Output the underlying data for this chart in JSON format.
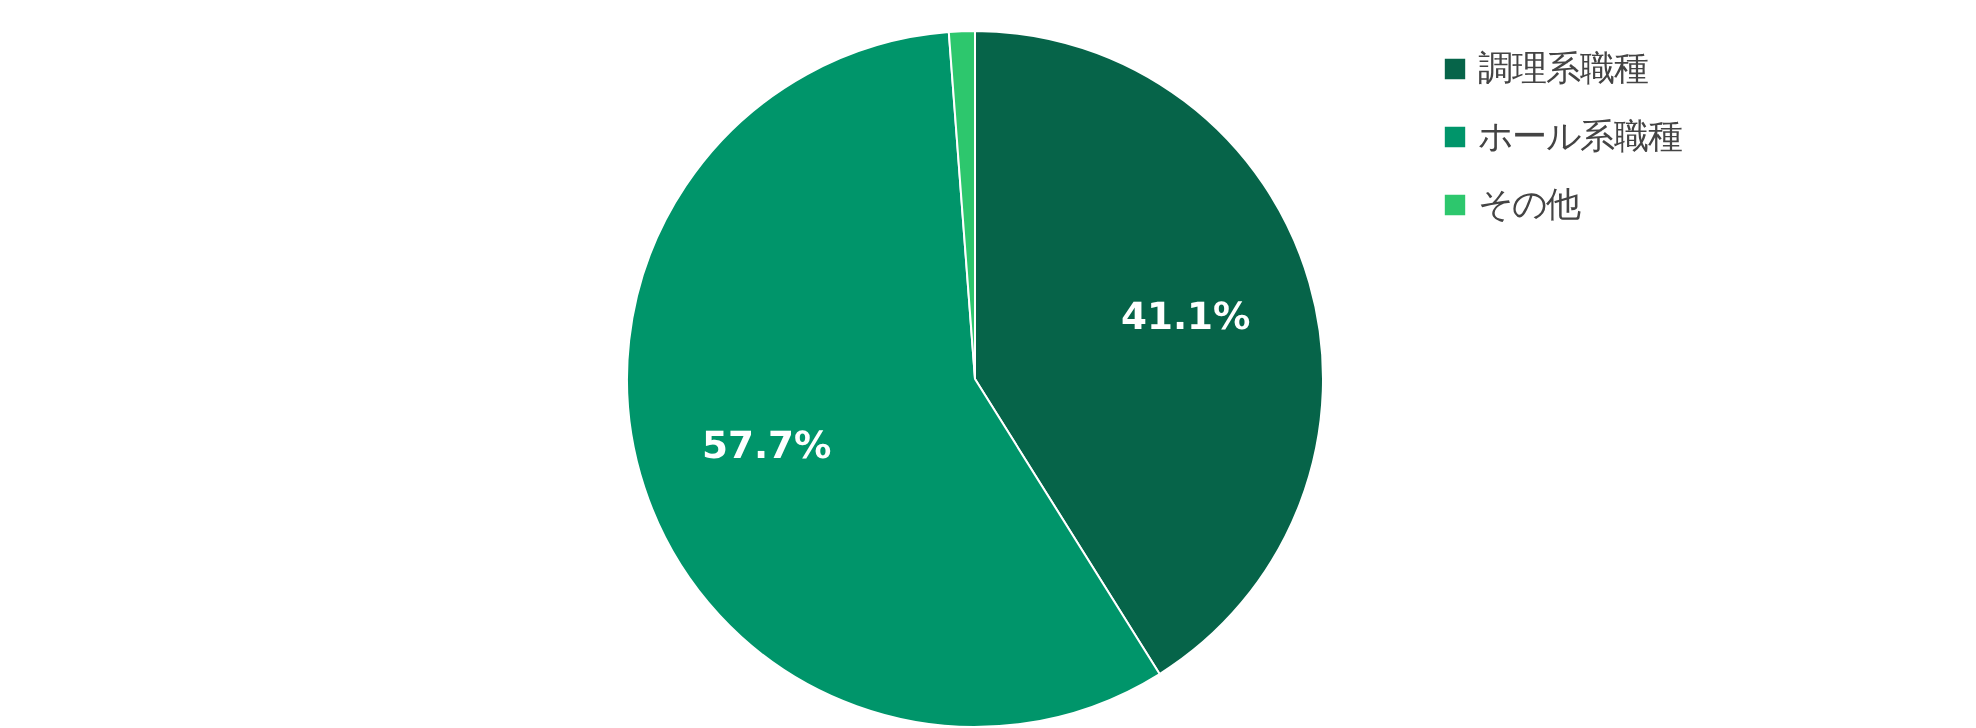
{
  "chart_data": {
    "type": "pie",
    "categories": [
      "調理系職種",
      "ホール系職種",
      "その他"
    ],
    "values": [
      41.1,
      57.7,
      1.2
    ],
    "colors": [
      "#066449",
      "#00956a",
      "#2dc76d"
    ],
    "value_labels": [
      "41.1%",
      "57.7%",
      null
    ],
    "legend": "top right"
  }
}
